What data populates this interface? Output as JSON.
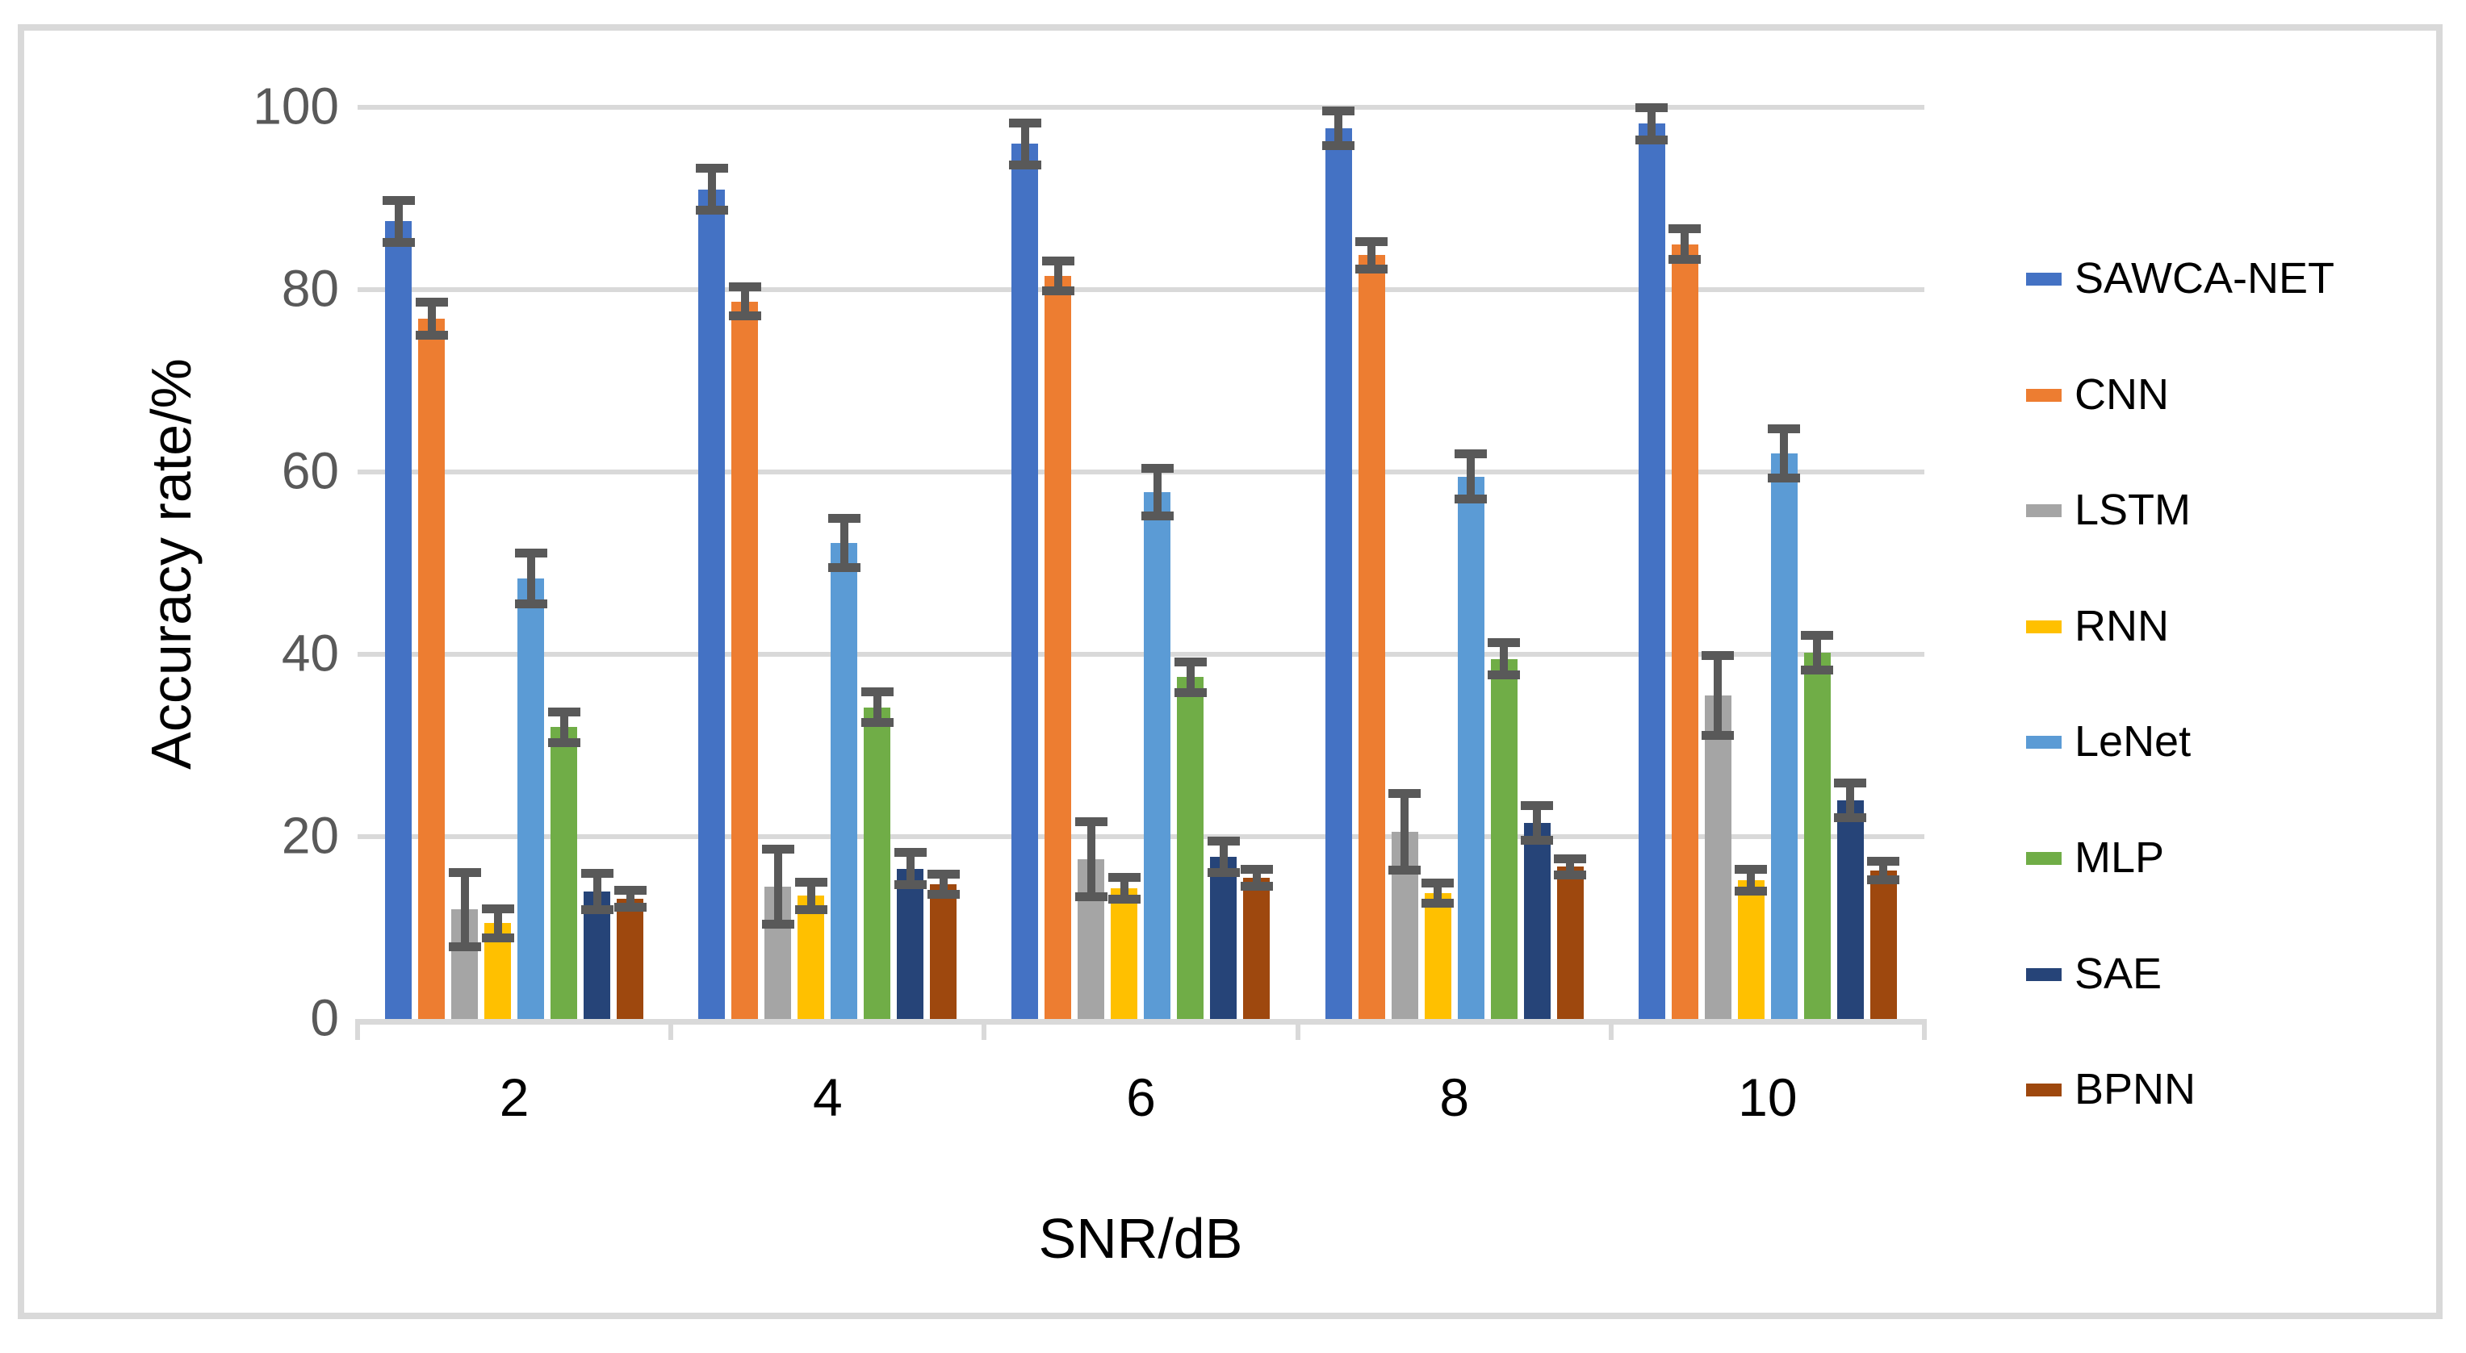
{
  "chart_data": {
    "type": "bar",
    "title": "",
    "xlabel": "SNR/dB",
    "ylabel": "Accuracy rate/%",
    "categories": [
      "2",
      "4",
      "6",
      "8",
      "10"
    ],
    "ylim": [
      0,
      100
    ],
    "ytick_step": 20,
    "y_ticks": [
      {
        "label": "100",
        "value": 100
      },
      {
        "label": "80",
        "value": 80
      },
      {
        "label": "60",
        "value": 60
      },
      {
        "label": "40",
        "value": 40
      },
      {
        "label": "20",
        "value": 20
      },
      {
        "label": "0",
        "value": 0
      }
    ],
    "grid": true,
    "error_bars": true,
    "legend_position": "right",
    "series": [
      {
        "name": "SAWCA-NET",
        "color": "#4472C4",
        "values": [
          87.5,
          91.0,
          96.0,
          97.7,
          98.2
        ],
        "errors": [
          2.3,
          2.3,
          2.3,
          1.9,
          1.8
        ]
      },
      {
        "name": "CNN",
        "color": "#ED7D31",
        "values": [
          76.8,
          78.7,
          81.5,
          83.8,
          85.0
        ],
        "errors": [
          1.8,
          1.6,
          1.6,
          1.5,
          1.7
        ]
      },
      {
        "name": "LSTM",
        "color": "#A5A5A5",
        "values": [
          12.0,
          14.5,
          17.5,
          20.5,
          35.5
        ],
        "errors": [
          4.1,
          4.1,
          4.1,
          4.2,
          4.4
        ]
      },
      {
        "name": "RNN",
        "color": "#FFC000",
        "values": [
          10.5,
          13.5,
          14.3,
          13.8,
          15.2
        ],
        "errors": [
          1.6,
          1.5,
          1.2,
          1.1,
          1.2
        ]
      },
      {
        "name": "LeNet",
        "color": "#5B9BD5",
        "values": [
          48.3,
          52.2,
          57.8,
          59.5,
          62.0
        ],
        "errors": [
          2.8,
          2.7,
          2.6,
          2.5,
          2.7
        ]
      },
      {
        "name": "MLP",
        "color": "#70AD47",
        "values": [
          32.0,
          34.2,
          37.5,
          39.5,
          40.2
        ],
        "errors": [
          1.7,
          1.7,
          1.7,
          1.8,
          1.9
        ]
      },
      {
        "name": "SAE",
        "color": "#264478",
        "values": [
          14.0,
          16.5,
          17.8,
          21.5,
          24.0
        ],
        "errors": [
          2.0,
          1.8,
          1.7,
          1.9,
          1.9
        ]
      },
      {
        "name": "BPNN",
        "color": "#9E480E",
        "values": [
          13.2,
          14.8,
          15.5,
          16.7,
          16.3
        ],
        "errors": [
          0.9,
          1.1,
          0.9,
          0.9,
          1.0
        ]
      }
    ],
    "colors": {
      "error_bar": "#595959",
      "gridline": "#D9D9D9",
      "axis_line": "#D9D9D9",
      "y_tick_label": "#595959",
      "x_tick_label": "#000000",
      "axis_title": "#000000",
      "legend_label": "#000000",
      "frame_border": "#D9D9D9",
      "background": "#FFFFFF"
    }
  }
}
